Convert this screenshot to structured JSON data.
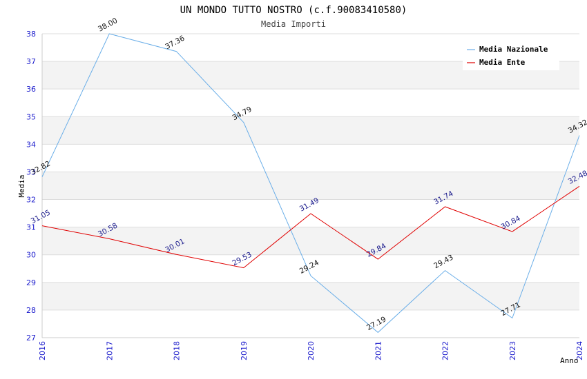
{
  "chart_data": {
    "type": "line",
    "title": "UN MONDO TUTTO NOSTRO (c.f.90083410580)",
    "subtitle": "Media Importi",
    "xlabel": "Anno",
    "ylabel": "Media",
    "ylim": [
      27,
      38
    ],
    "yticks": [
      27,
      28,
      29,
      30,
      31,
      32,
      33,
      34,
      35,
      36,
      37,
      38
    ],
    "categories": [
      "2016",
      "2017",
      "2018",
      "2019",
      "2020",
      "2021",
      "2022",
      "2023",
      "2024"
    ],
    "grid": "horizontal bands",
    "legend_position": "top-right",
    "series": [
      {
        "name": "Media Nazionale",
        "color": "#6aaee8",
        "values": [
          32.82,
          38.0,
          37.36,
          34.79,
          29.24,
          27.19,
          29.43,
          27.71,
          34.32
        ],
        "labels": [
          "32.82",
          "38.00",
          "37.36",
          "34.79",
          "29.24",
          "27.19",
          "29.43",
          "27.71",
          "34.32"
        ]
      },
      {
        "name": "Media Ente",
        "color": "#e00000",
        "values": [
          31.05,
          30.58,
          30.01,
          29.53,
          31.49,
          29.84,
          31.74,
          30.84,
          32.48
        ],
        "labels": [
          "31.05",
          "30.58",
          "30.01",
          "29.53",
          "31.49",
          "29.84",
          "31.74",
          "30.84",
          "32.48"
        ]
      }
    ]
  }
}
